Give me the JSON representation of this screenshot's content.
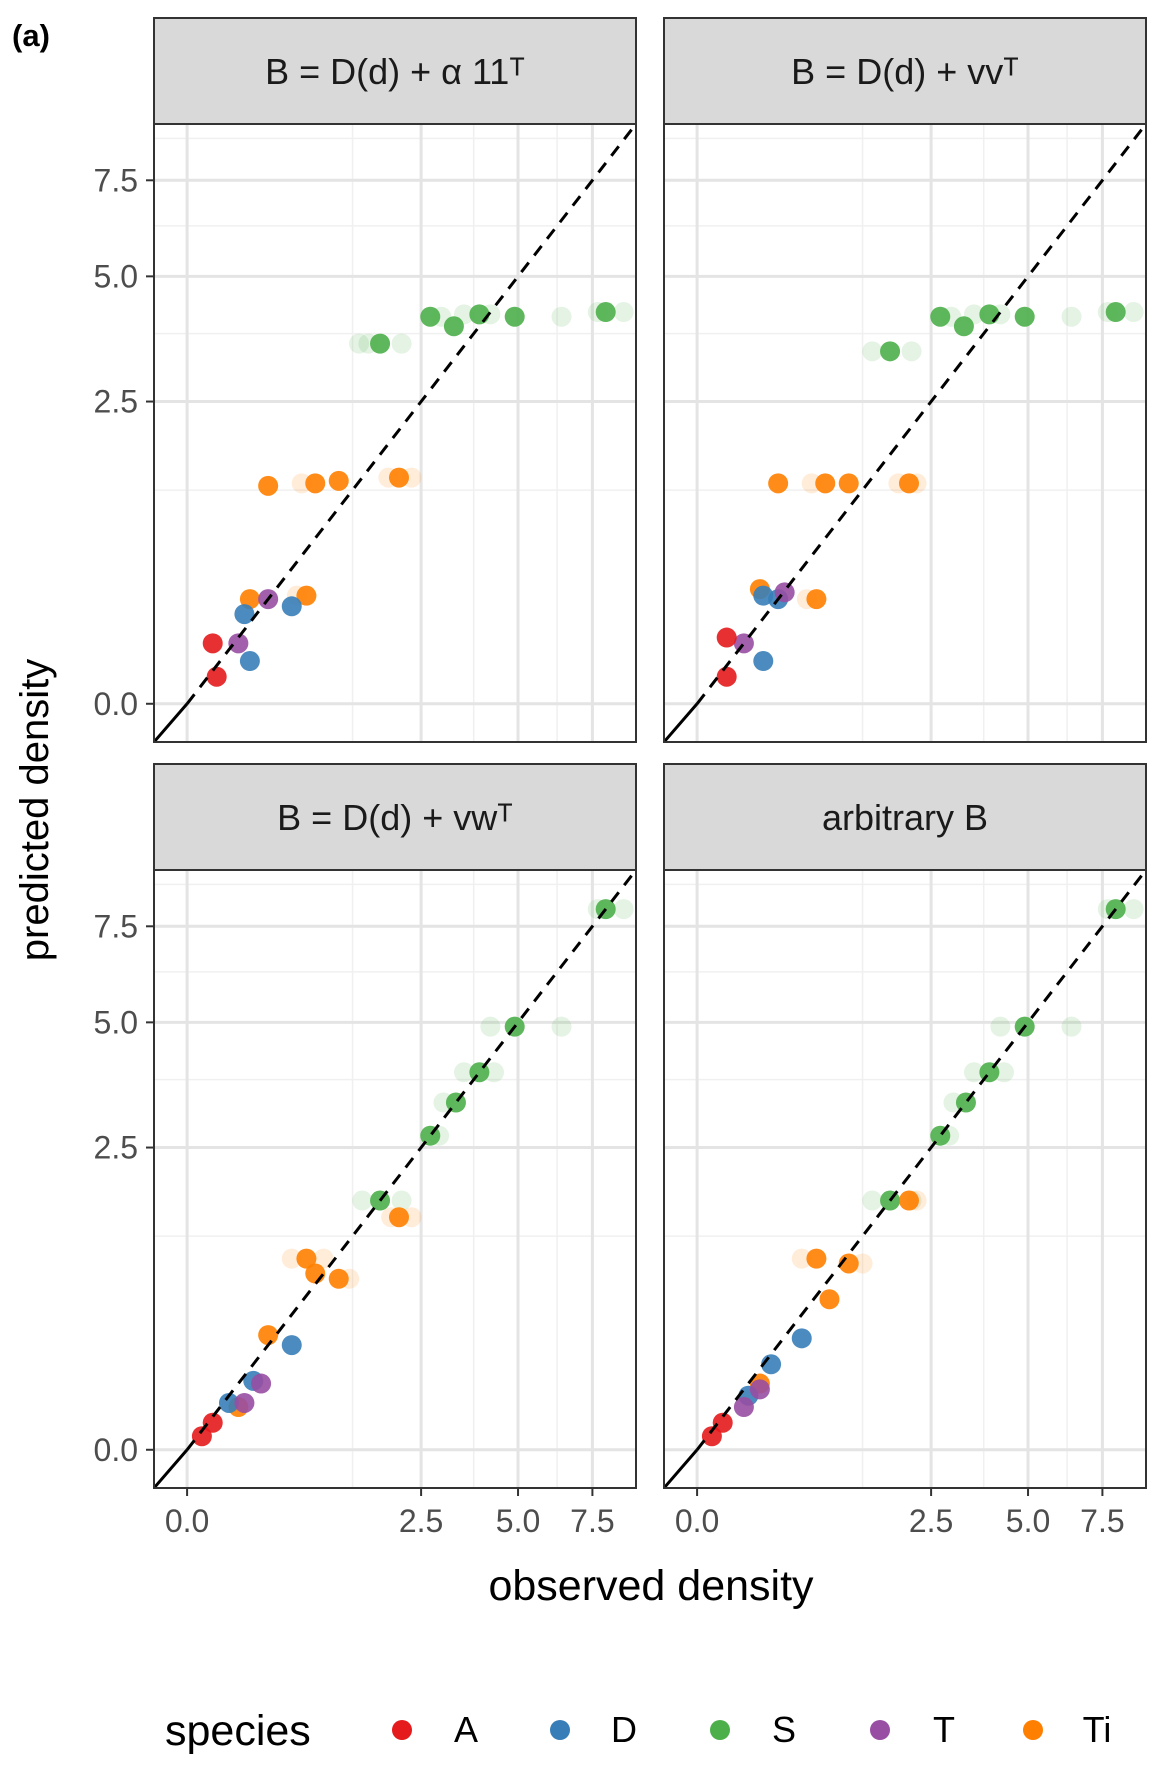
{
  "panel_tag": "(a)",
  "chart_data": {
    "type": "scatter",
    "xlabel": "observed density",
    "ylabel": "predicted density",
    "scale": "sqrt",
    "xticks": [
      {
        "v": 0,
        "label": "0.0"
      },
      {
        "v": 2.5,
        "label": "2.5"
      },
      {
        "v": 5,
        "label": "5.0"
      },
      {
        "v": 7.5,
        "label": "7.5"
      }
    ],
    "yticks": [
      {
        "v": 0,
        "label": "0.0"
      },
      {
        "v": 2.5,
        "label": "2.5"
      },
      {
        "v": 5,
        "label": "5.0"
      },
      {
        "v": 7.5,
        "label": "7.5"
      }
    ],
    "xlim": [
      -0.05,
      9.2
    ],
    "ylim": [
      -0.04,
      9.2
    ],
    "reference_line": "y = x (dashed)",
    "legend": {
      "title": "species",
      "position": "bottom",
      "entries": [
        {
          "name": "A",
          "color": "#E41A1C"
        },
        {
          "name": "D",
          "color": "#377EB8"
        },
        {
          "name": "S",
          "color": "#4DAF4A"
        },
        {
          "name": "T",
          "color": "#984EA3"
        },
        {
          "name": "Ti",
          "color": "#FF7F00"
        }
      ]
    },
    "facets": [
      {
        "strip": "B = D(d) + α 11ᵀ",
        "points": [
          {
            "s": "S",
            "x": 1.7,
            "y": 3.55
          },
          {
            "s": "S",
            "x": 2.7,
            "y": 4.1
          },
          {
            "s": "S",
            "x": 3.25,
            "y": 3.9
          },
          {
            "s": "S",
            "x": 3.9,
            "y": 4.15
          },
          {
            "s": "S",
            "x": 4.9,
            "y": 4.1
          },
          {
            "s": "S",
            "x": 8.0,
            "y": 4.2
          },
          {
            "s": "Ti",
            "x": 0.3,
            "y": 1.3
          },
          {
            "s": "Ti",
            "x": 0.75,
            "y": 1.33
          },
          {
            "s": "Ti",
            "x": 1.05,
            "y": 1.36
          },
          {
            "s": "Ti",
            "x": 2.05,
            "y": 1.4
          },
          {
            "s": "Ti",
            "x": 0.65,
            "y": 0.32
          },
          {
            "s": "Ti",
            "x": 0.18,
            "y": 0.3
          },
          {
            "s": "D",
            "x": 0.5,
            "y": 0.26
          },
          {
            "s": "D",
            "x": 0.15,
            "y": 0.22
          },
          {
            "s": "D",
            "x": 0.18,
            "y": 0.05
          },
          {
            "s": "T",
            "x": 0.3,
            "y": 0.3
          },
          {
            "s": "T",
            "x": 0.12,
            "y": 0.1
          },
          {
            "s": "A",
            "x": 0.03,
            "y": 0.1
          },
          {
            "s": "A",
            "x": 0.04,
            "y": 0.02
          }
        ],
        "ghosts": [
          {
            "s": "S",
            "x": 1.35,
            "y": 3.55
          },
          {
            "s": "S",
            "x": 1.5,
            "y": 3.55
          },
          {
            "s": "S",
            "x": 2.1,
            "y": 3.55
          },
          {
            "s": "S",
            "x": 2.95,
            "y": 4.1
          },
          {
            "s": "S",
            "x": 3.5,
            "y": 4.15
          },
          {
            "s": "S",
            "x": 4.2,
            "y": 4.15
          },
          {
            "s": "S",
            "x": 6.4,
            "y": 4.1
          },
          {
            "s": "S",
            "x": 7.7,
            "y": 4.2
          },
          {
            "s": "S",
            "x": 8.7,
            "y": 4.2
          },
          {
            "s": "Ti",
            "x": 0.6,
            "y": 1.33
          },
          {
            "s": "Ti",
            "x": 1.85,
            "y": 1.4
          },
          {
            "s": "Ti",
            "x": 2.3,
            "y": 1.4
          },
          {
            "s": "Ti",
            "x": 0.55,
            "y": 0.32
          }
        ]
      },
      {
        "strip": "B = D(d) + vvᵀ",
        "points": [
          {
            "s": "S",
            "x": 1.7,
            "y": 3.4
          },
          {
            "s": "S",
            "x": 2.7,
            "y": 4.1
          },
          {
            "s": "S",
            "x": 3.25,
            "y": 3.9
          },
          {
            "s": "S",
            "x": 3.9,
            "y": 4.15
          },
          {
            "s": "S",
            "x": 4.9,
            "y": 4.1
          },
          {
            "s": "S",
            "x": 8.0,
            "y": 4.2
          },
          {
            "s": "Ti",
            "x": 0.3,
            "y": 1.33
          },
          {
            "s": "Ti",
            "x": 0.75,
            "y": 1.33
          },
          {
            "s": "Ti",
            "x": 1.05,
            "y": 1.33
          },
          {
            "s": "Ti",
            "x": 2.05,
            "y": 1.33
          },
          {
            "s": "Ti",
            "x": 0.65,
            "y": 0.3
          },
          {
            "s": "Ti",
            "x": 0.18,
            "y": 0.36
          },
          {
            "s": "D",
            "x": 0.2,
            "y": 0.32
          },
          {
            "s": "D",
            "x": 0.3,
            "y": 0.3
          },
          {
            "s": "D",
            "x": 0.2,
            "y": 0.05
          },
          {
            "s": "T",
            "x": 0.35,
            "y": 0.34
          },
          {
            "s": "T",
            "x": 0.1,
            "y": 0.1
          },
          {
            "s": "A",
            "x": 0.04,
            "y": 0.12
          },
          {
            "s": "A",
            "x": 0.04,
            "y": 0.02
          }
        ],
        "ghosts": [
          {
            "s": "S",
            "x": 1.4,
            "y": 3.4
          },
          {
            "s": "S",
            "x": 2.1,
            "y": 3.4
          },
          {
            "s": "S",
            "x": 2.95,
            "y": 4.1
          },
          {
            "s": "S",
            "x": 3.5,
            "y": 4.15
          },
          {
            "s": "S",
            "x": 4.2,
            "y": 4.15
          },
          {
            "s": "S",
            "x": 6.4,
            "y": 4.1
          },
          {
            "s": "S",
            "x": 7.7,
            "y": 4.2
          },
          {
            "s": "S",
            "x": 8.7,
            "y": 4.2
          },
          {
            "s": "Ti",
            "x": 0.6,
            "y": 1.33
          },
          {
            "s": "Ti",
            "x": 1.85,
            "y": 1.33
          },
          {
            "s": "Ti",
            "x": 2.2,
            "y": 1.33
          },
          {
            "s": "Ti",
            "x": 0.55,
            "y": 0.3
          }
        ]
      },
      {
        "strip": "B = D(d) + vwᵀ",
        "points": [
          {
            "s": "S",
            "x": 8.0,
            "y": 8.0
          },
          {
            "s": "S",
            "x": 4.9,
            "y": 4.9
          },
          {
            "s": "S",
            "x": 3.9,
            "y": 3.9
          },
          {
            "s": "S",
            "x": 3.3,
            "y": 3.3
          },
          {
            "s": "S",
            "x": 2.7,
            "y": 2.7
          },
          {
            "s": "S",
            "x": 1.7,
            "y": 1.7
          },
          {
            "s": "Ti",
            "x": 2.05,
            "y": 1.48
          },
          {
            "s": "Ti",
            "x": 0.65,
            "y": 1.0
          },
          {
            "s": "Ti",
            "x": 0.75,
            "y": 0.85
          },
          {
            "s": "Ti",
            "x": 1.05,
            "y": 0.8
          },
          {
            "s": "Ti",
            "x": 0.3,
            "y": 0.36
          },
          {
            "s": "Ti",
            "x": 0.12,
            "y": 0.05
          },
          {
            "s": "D",
            "x": 0.5,
            "y": 0.3
          },
          {
            "s": "D",
            "x": 0.2,
            "y": 0.13
          },
          {
            "s": "D",
            "x": 0.08,
            "y": 0.06
          },
          {
            "s": "T",
            "x": 0.25,
            "y": 0.12
          },
          {
            "s": "T",
            "x": 0.15,
            "y": 0.06
          },
          {
            "s": "A",
            "x": 0.03,
            "y": 0.02
          },
          {
            "s": "A",
            "x": 0.01,
            "y": 0.005
          }
        ],
        "ghosts": [
          {
            "s": "S",
            "x": 7.7,
            "y": 8.0
          },
          {
            "s": "S",
            "x": 8.7,
            "y": 8.0
          },
          {
            "s": "S",
            "x": 4.2,
            "y": 4.9
          },
          {
            "s": "S",
            "x": 6.4,
            "y": 4.9
          },
          {
            "s": "S",
            "x": 3.5,
            "y": 3.9
          },
          {
            "s": "S",
            "x": 4.3,
            "y": 3.9
          },
          {
            "s": "S",
            "x": 3.0,
            "y": 3.3
          },
          {
            "s": "S",
            "x": 2.9,
            "y": 2.7
          },
          {
            "s": "S",
            "x": 1.4,
            "y": 1.7
          },
          {
            "s": "S",
            "x": 2.1,
            "y": 1.7
          },
          {
            "s": "Ti",
            "x": 1.9,
            "y": 1.48
          },
          {
            "s": "Ti",
            "x": 2.3,
            "y": 1.48
          },
          {
            "s": "Ti",
            "x": 0.5,
            "y": 1.0
          },
          {
            "s": "Ti",
            "x": 0.85,
            "y": 1.0
          },
          {
            "s": "Ti",
            "x": 1.2,
            "y": 0.8
          }
        ]
      },
      {
        "strip": "arbitrary  B",
        "points": [
          {
            "s": "S",
            "x": 8.0,
            "y": 8.0
          },
          {
            "s": "S",
            "x": 4.9,
            "y": 4.9
          },
          {
            "s": "S",
            "x": 3.9,
            "y": 3.9
          },
          {
            "s": "S",
            "x": 3.3,
            "y": 3.3
          },
          {
            "s": "S",
            "x": 2.7,
            "y": 2.7
          },
          {
            "s": "S",
            "x": 1.7,
            "y": 1.7
          },
          {
            "s": "Ti",
            "x": 2.05,
            "y": 1.7
          },
          {
            "s": "Ti",
            "x": 0.65,
            "y": 1.0
          },
          {
            "s": "Ti",
            "x": 1.05,
            "y": 0.95
          },
          {
            "s": "Ti",
            "x": 0.8,
            "y": 0.62
          },
          {
            "s": "Ti",
            "x": 0.18,
            "y": 0.12
          },
          {
            "s": "D",
            "x": 0.5,
            "y": 0.34
          },
          {
            "s": "D",
            "x": 0.25,
            "y": 0.2
          },
          {
            "s": "D",
            "x": 0.12,
            "y": 0.08
          },
          {
            "s": "T",
            "x": 0.18,
            "y": 0.1
          },
          {
            "s": "T",
            "x": 0.1,
            "y": 0.05
          },
          {
            "s": "A",
            "x": 0.03,
            "y": 0.02
          },
          {
            "s": "A",
            "x": 0.01,
            "y": 0.005
          }
        ],
        "ghosts": [
          {
            "s": "S",
            "x": 7.7,
            "y": 8.0
          },
          {
            "s": "S",
            "x": 8.7,
            "y": 8.0
          },
          {
            "s": "S",
            "x": 4.2,
            "y": 4.9
          },
          {
            "s": "S",
            "x": 6.4,
            "y": 4.9
          },
          {
            "s": "S",
            "x": 3.5,
            "y": 3.9
          },
          {
            "s": "S",
            "x": 4.3,
            "y": 3.9
          },
          {
            "s": "S",
            "x": 3.0,
            "y": 3.3
          },
          {
            "s": "S",
            "x": 2.9,
            "y": 2.7
          },
          {
            "s": "S",
            "x": 1.4,
            "y": 1.7
          },
          {
            "s": "S",
            "x": 2.1,
            "y": 1.7
          },
          {
            "s": "Ti",
            "x": 2.2,
            "y": 1.7
          },
          {
            "s": "Ti",
            "x": 0.5,
            "y": 1.0
          },
          {
            "s": "Ti",
            "x": 1.25,
            "y": 0.95
          }
        ]
      }
    ]
  }
}
